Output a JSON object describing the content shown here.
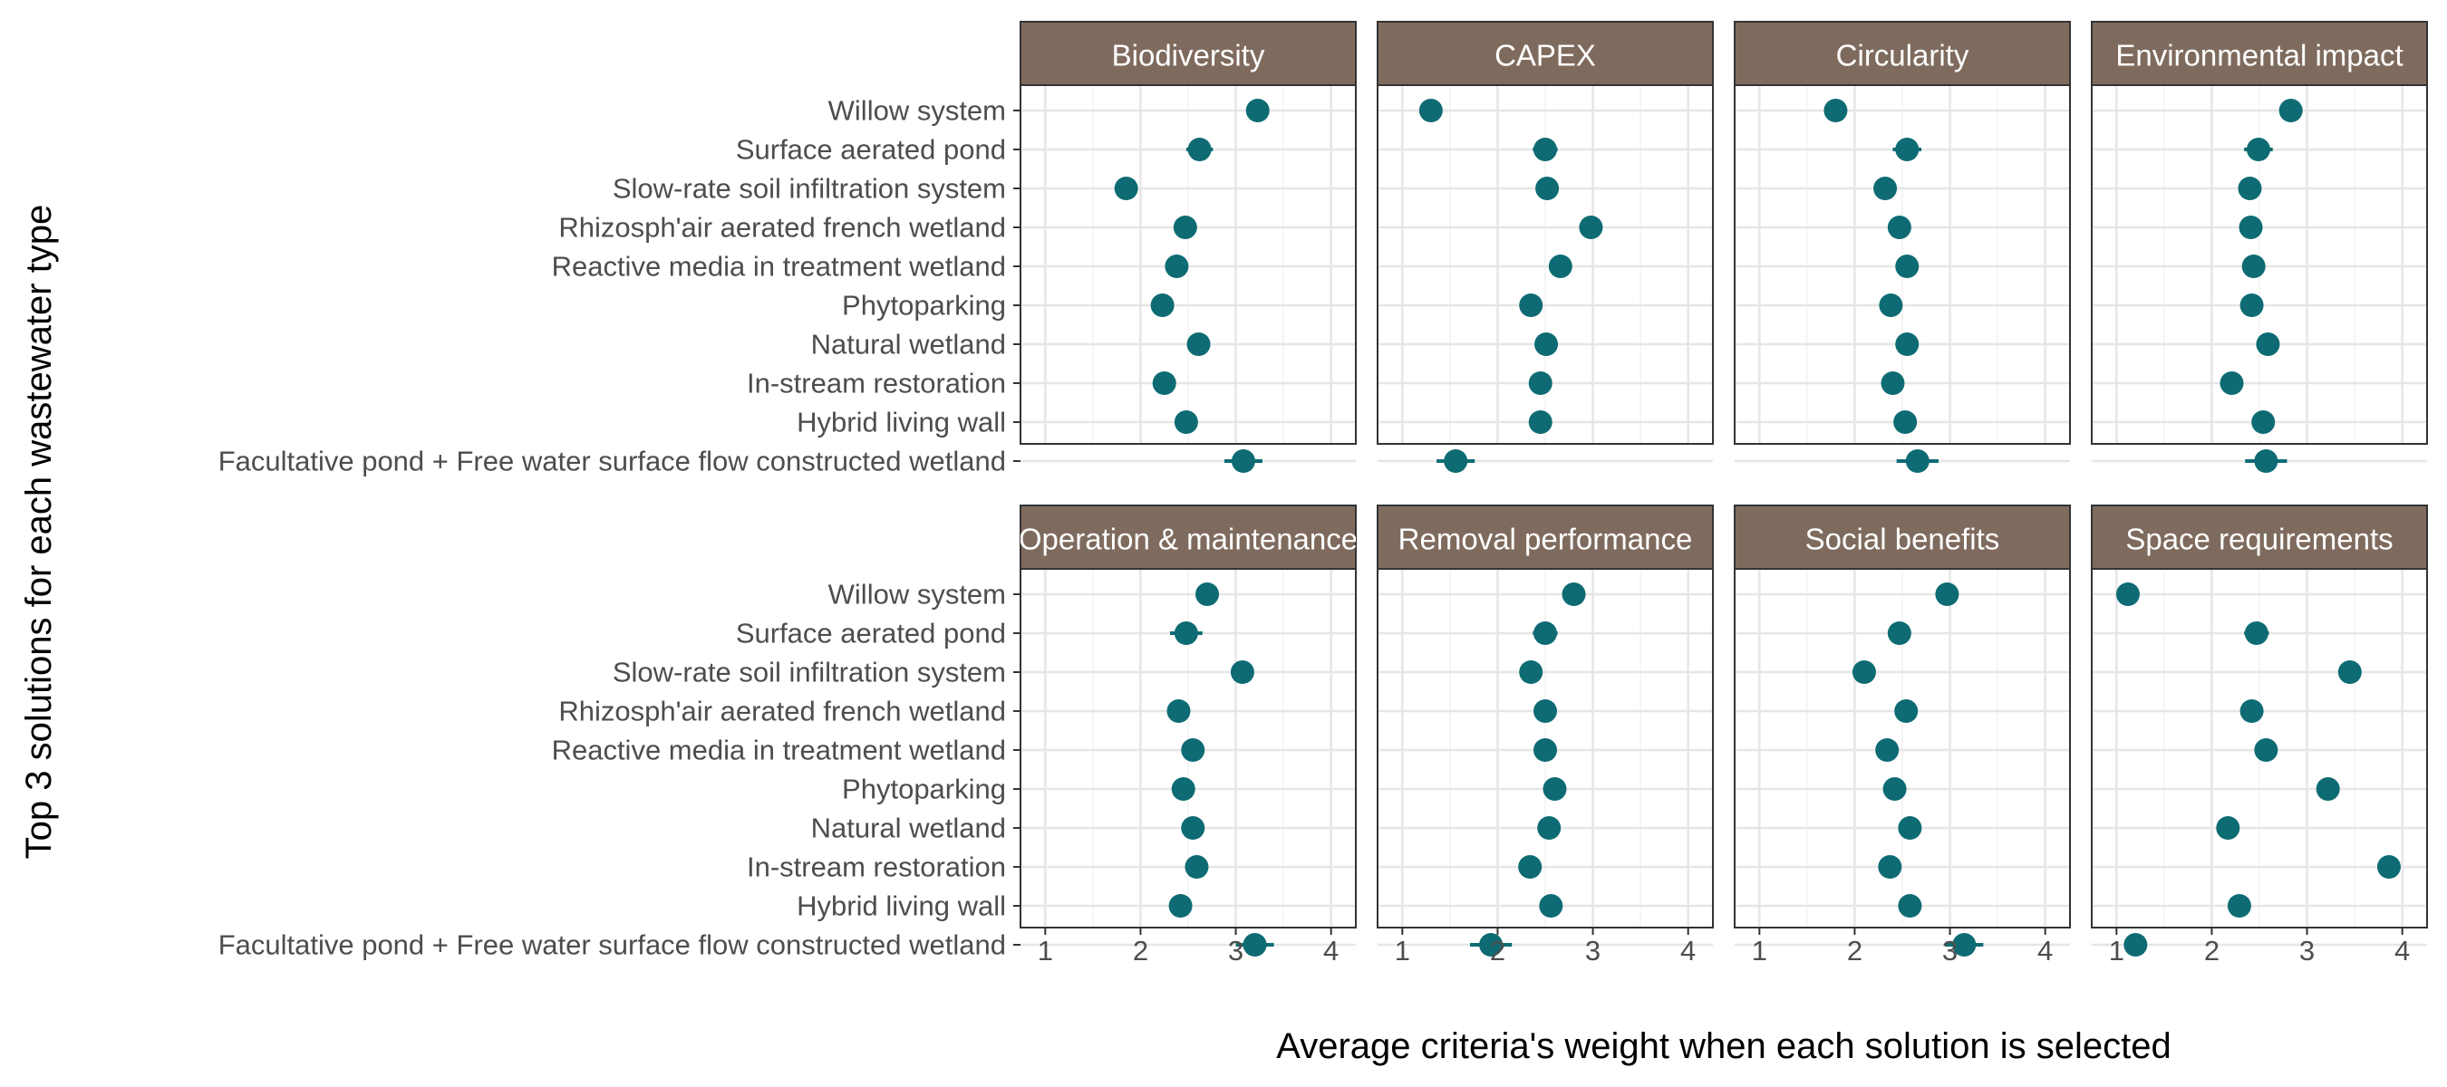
{
  "chart_data": {
    "type": "scatter",
    "variant": "faceted dot plot with error bars",
    "xlabel": "Average criteria's weight when each solution is selected",
    "ylabel": "Top 3 solutions for each wastewater type",
    "xlim": [
      0.9,
      4.1
    ],
    "x_ticks": [
      1,
      2,
      3,
      4
    ],
    "grid": true,
    "facet_layout": "2 rows x 4 columns",
    "colors": {
      "point": "#0e6b73",
      "strip_fill": "#7f6b5e",
      "strip_text": "#ffffff",
      "grid_major": "#e6e6e6",
      "grid_minor": "#f2f2f2",
      "panel_border": "#333333"
    },
    "categories": [
      "Willow system",
      "Surface aerated pond",
      "Slow-rate soil infiltration system",
      "Rhizosph'air aerated french wetland",
      "Reactive media in treatment wetland",
      "Phytoparking",
      "Natural wetland",
      "In-stream restoration",
      "Hybrid living wall",
      "Facultative pond + Free water surface flow constructed wetland"
    ],
    "facets": [
      {
        "name": "Biodiversity",
        "values": [
          3.23,
          2.62,
          1.85,
          2.47,
          2.38,
          2.23,
          2.61,
          2.25,
          2.48,
          3.08
        ],
        "errors": [
          0.05,
          0.14,
          0.05,
          0.05,
          0.05,
          0.05,
          0.05,
          0.08,
          0.05,
          0.2
        ]
      },
      {
        "name": "CAPEX",
        "values": [
          1.3,
          2.5,
          2.52,
          2.98,
          2.66,
          2.35,
          2.51,
          2.45,
          2.45,
          1.56
        ],
        "errors": [
          0.05,
          0.13,
          0.05,
          0.05,
          0.05,
          0.05,
          0.05,
          0.08,
          0.05,
          0.2
        ]
      },
      {
        "name": "Circularity",
        "values": [
          1.8,
          2.55,
          2.32,
          2.47,
          2.55,
          2.38,
          2.55,
          2.4,
          2.53,
          2.66
        ],
        "errors": [
          0.05,
          0.15,
          0.05,
          0.05,
          0.05,
          0.05,
          0.05,
          0.1,
          0.05,
          0.22
        ]
      },
      {
        "name": "Environmental impact",
        "values": [
          2.83,
          2.49,
          2.4,
          2.41,
          2.44,
          2.42,
          2.59,
          2.21,
          2.54,
          2.57
        ],
        "errors": [
          0.05,
          0.15,
          0.05,
          0.05,
          0.05,
          0.05,
          0.05,
          0.08,
          0.05,
          0.22
        ]
      },
      {
        "name": "Operation & maintenance",
        "values": [
          2.7,
          2.48,
          3.07,
          2.4,
          2.55,
          2.45,
          2.55,
          2.59,
          2.42,
          3.2
        ],
        "errors": [
          0.05,
          0.17,
          0.05,
          0.05,
          0.05,
          0.05,
          0.05,
          0.1,
          0.05,
          0.2
        ]
      },
      {
        "name": "Removal performance",
        "values": [
          2.8,
          2.5,
          2.35,
          2.5,
          2.5,
          2.6,
          2.54,
          2.34,
          2.56,
          1.93
        ],
        "errors": [
          0.05,
          0.13,
          0.05,
          0.05,
          0.05,
          0.05,
          0.05,
          0.1,
          0.05,
          0.22
        ]
      },
      {
        "name": "Social benefits",
        "values": [
          2.97,
          2.47,
          2.1,
          2.54,
          2.34,
          2.42,
          2.58,
          2.37,
          2.58,
          3.15
        ],
        "errors": [
          0.05,
          0.12,
          0.05,
          0.05,
          0.05,
          0.05,
          0.05,
          0.1,
          0.08,
          0.2
        ]
      },
      {
        "name": "Space requirements",
        "values": [
          1.12,
          2.47,
          3.45,
          2.42,
          2.57,
          3.22,
          2.17,
          3.86,
          2.29,
          1.2
        ],
        "errors": [
          0.05,
          0.13,
          0.05,
          0.05,
          0.05,
          0.05,
          0.05,
          0.05,
          0.1,
          0.1
        ]
      }
    ]
  }
}
